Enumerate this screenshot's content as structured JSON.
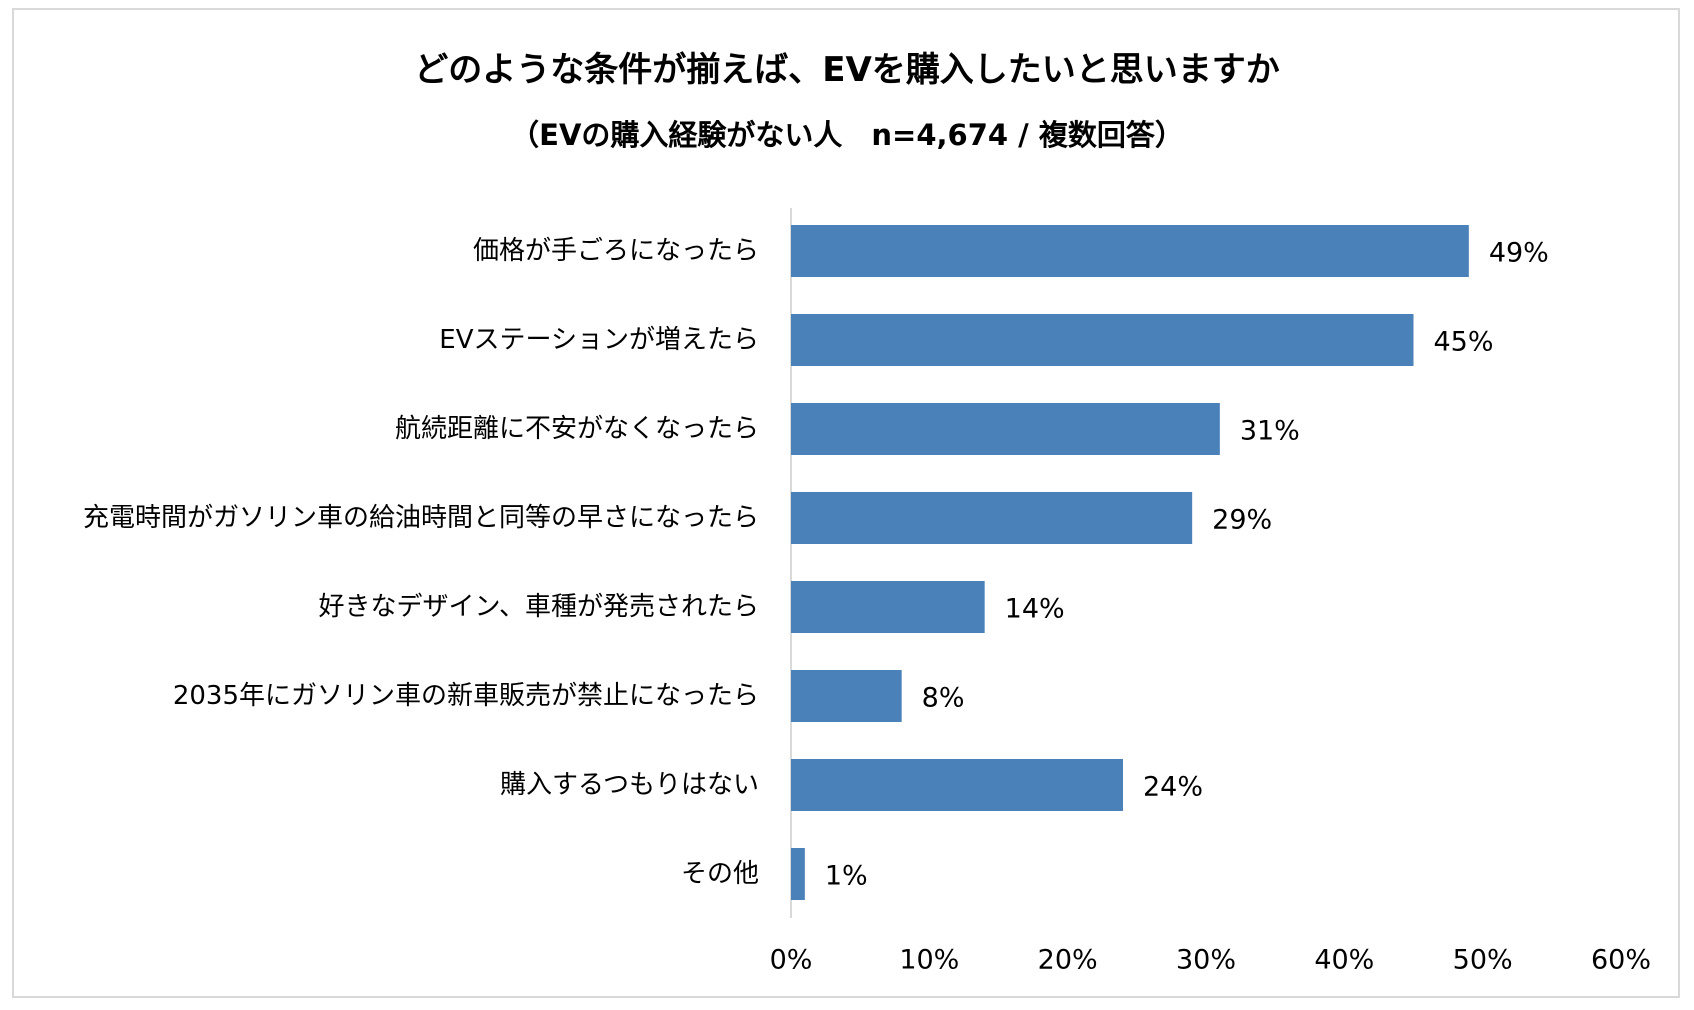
{
  "chart_data": {
    "type": "bar",
    "orientation": "horizontal",
    "title": "どのような条件が揃えば、EVを購入したいと思いますか",
    "subtitle": "（EVの購入経験がない人　n=4,674 / 複数回答）",
    "categories": [
      "価格が手ごろになったら",
      "EVステーションが増えたら",
      "航続距離に不安がなくなったら",
      "充電時間がガソリン車の給油時間と同等の早さになったら",
      "好きなデザイン、車種が発売されたら",
      "2035年にガソリン車の新車販売が禁止になったら",
      "購入するつもりはない",
      "その他"
    ],
    "values": [
      49,
      45,
      31,
      29,
      14,
      8,
      24,
      1
    ],
    "value_labels": [
      "49%",
      "45%",
      "31%",
      "29%",
      "14%",
      "8%",
      "24%",
      "1%"
    ],
    "xlim": [
      0,
      60
    ],
    "x_ticks": [
      "0%",
      "10%",
      "20%",
      "30%",
      "40%",
      "50%",
      "60%"
    ],
    "bar_color": "#4a81b9",
    "grid": false,
    "legend": "none"
  }
}
